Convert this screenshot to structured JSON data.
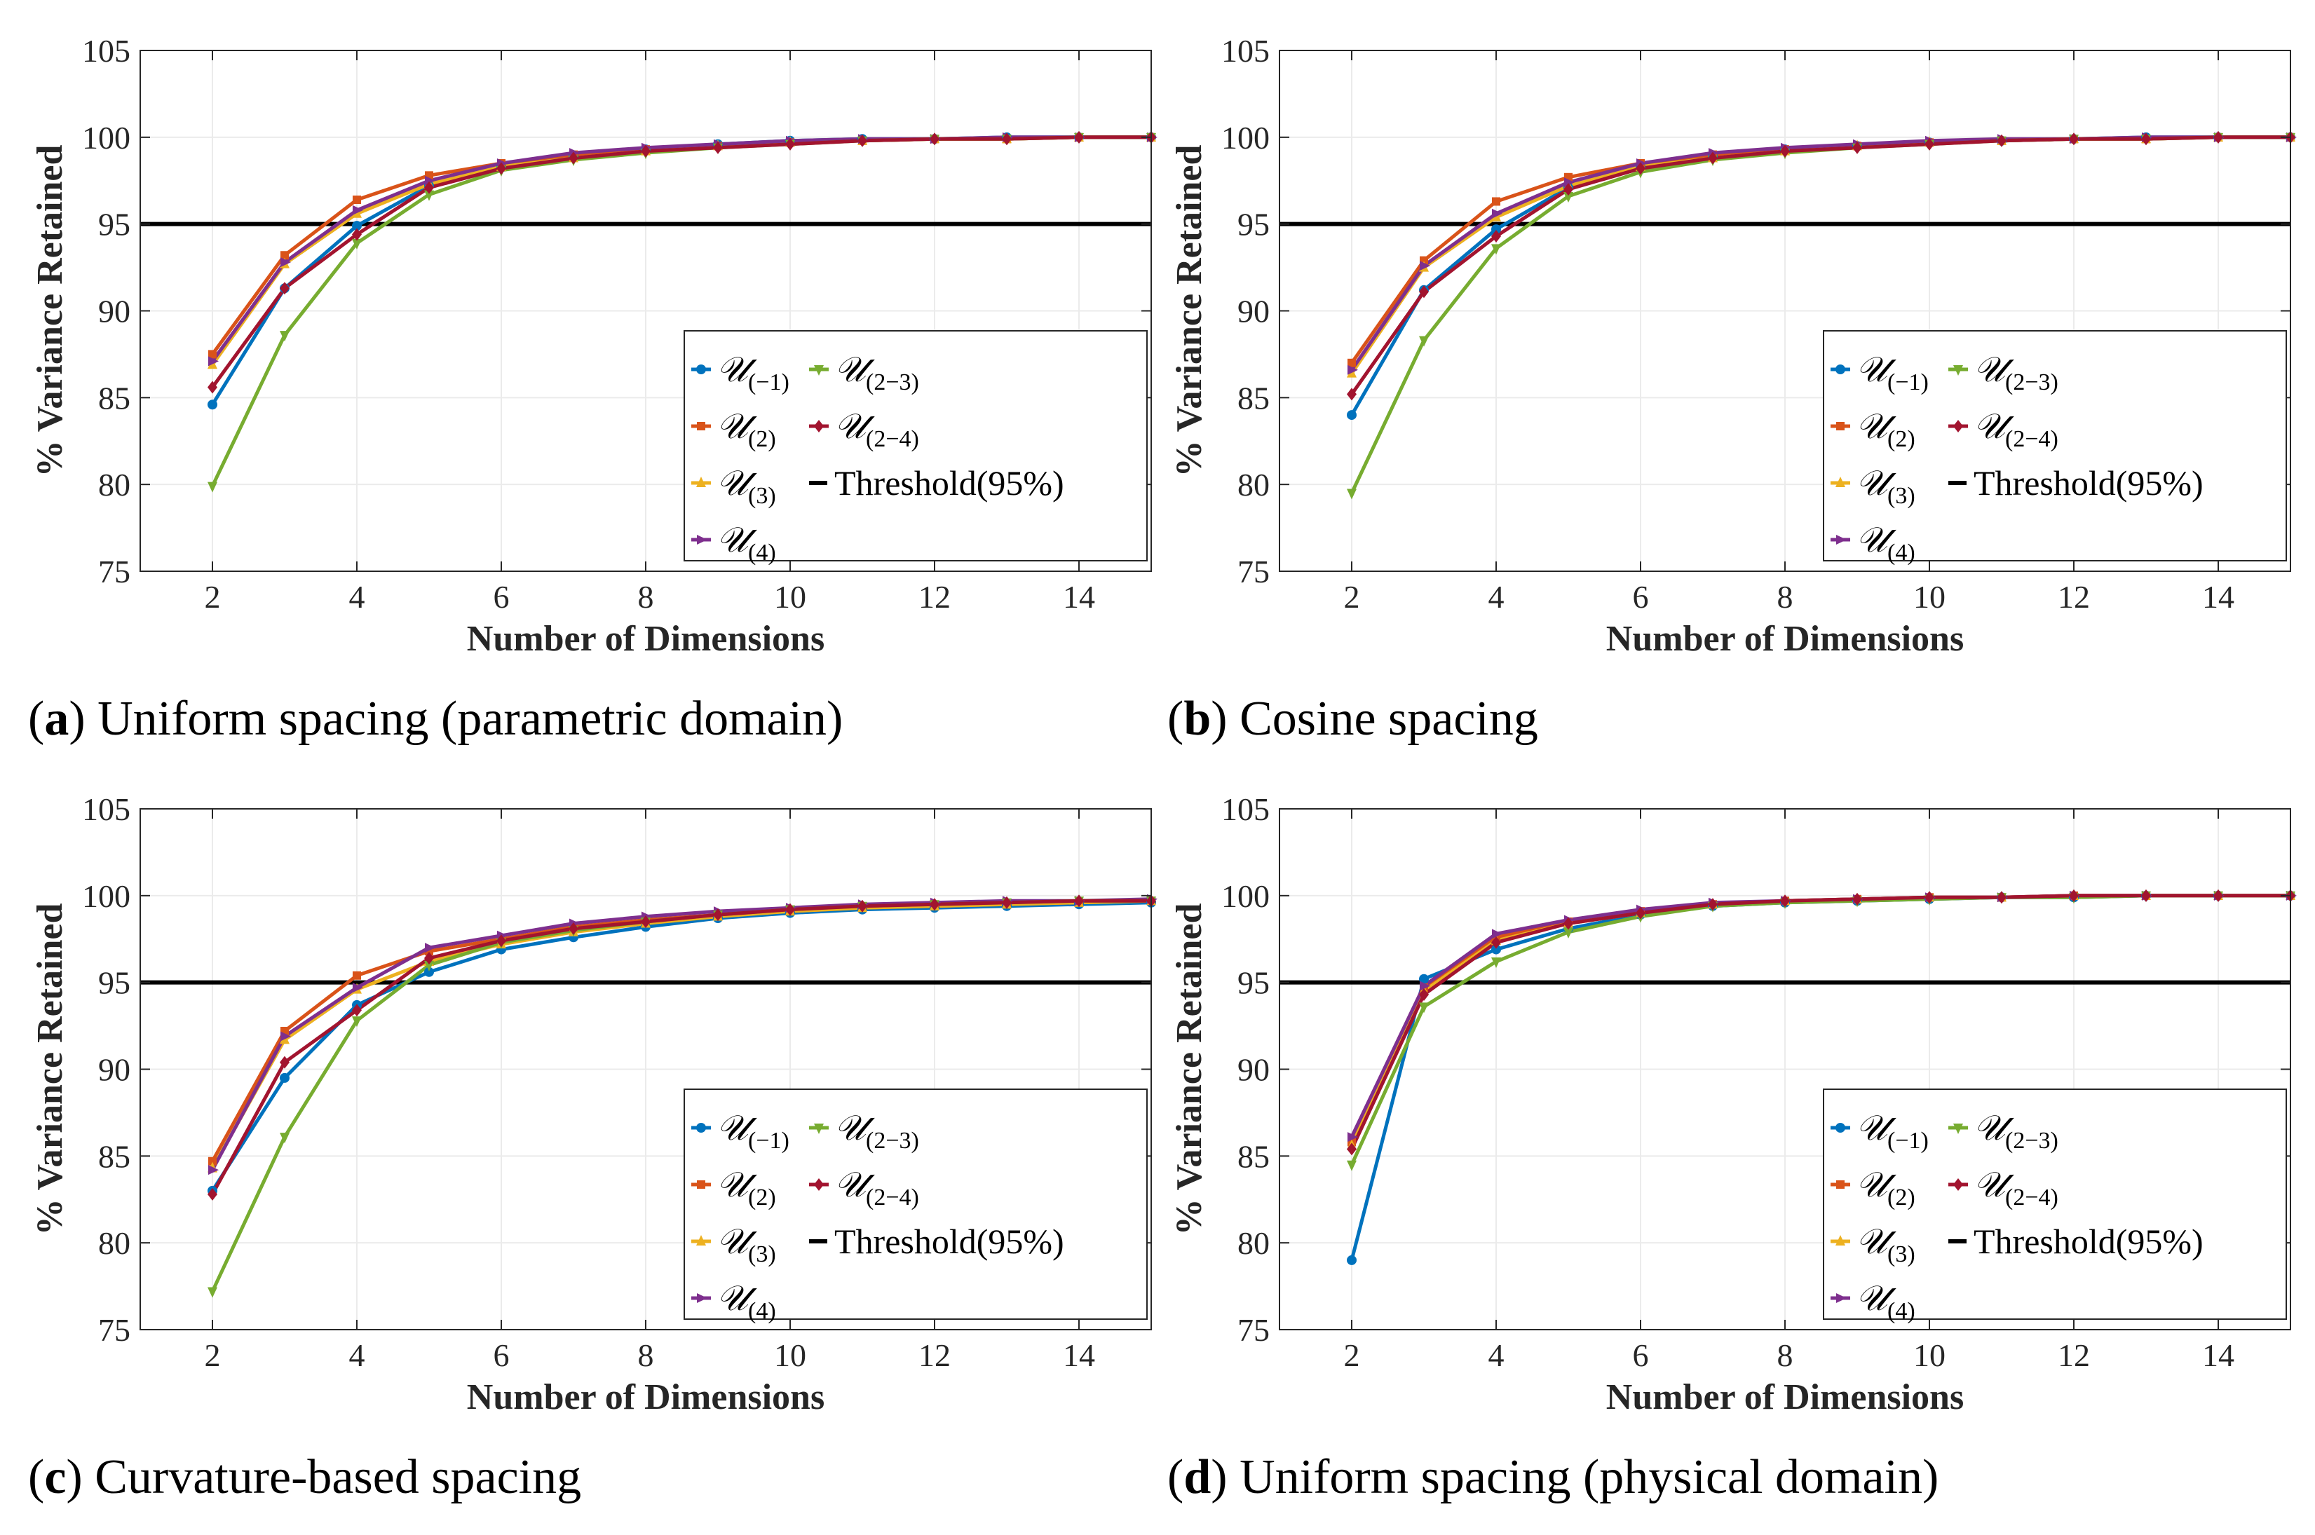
{
  "figure": {
    "panels": [
      {
        "letter": "a",
        "caption": " Uniform spacing (parametric domain)"
      },
      {
        "letter": "b",
        "caption": " Cosine spacing"
      },
      {
        "letter": "c",
        "caption": " Curvature-based spacing"
      },
      {
        "letter": "d",
        "caption": " Uniform spacing (physical domain)"
      }
    ]
  },
  "legend": {
    "entries": [
      {
        "main": "𝒰",
        "sub": "(−1)"
      },
      {
        "main": "𝒰",
        "sub": "(2)"
      },
      {
        "main": "𝒰",
        "sub": "(3)"
      },
      {
        "main": "𝒰",
        "sub": "(4)"
      },
      {
        "main": "𝒰",
        "sub": "(2−3)"
      },
      {
        "main": "𝒰",
        "sub": "(2−4)"
      },
      {
        "main": "Threshold(95%)",
        "sub": ""
      }
    ]
  },
  "colors": {
    "U(-1)": "#0072BD",
    "U(2)": "#D95319",
    "U(3)": "#EDB120",
    "U(4)": "#7E2F8E",
    "U(2-3)": "#77AC30",
    "U(2-4)": "#A2142F",
    "threshold": "#000000",
    "grid": "#ebebeb",
    "axis": "#262626"
  },
  "chart_data": [
    {
      "type": "line",
      "panel": "a",
      "title": "",
      "xlabel": "Number of Dimensions",
      "ylabel": "% Variance Retained",
      "xlim": [
        1,
        15
      ],
      "ylim": [
        75,
        105
      ],
      "xticks": [
        2,
        4,
        6,
        8,
        10,
        12,
        14
      ],
      "yticks": [
        75,
        80,
        85,
        90,
        95,
        100,
        105
      ],
      "threshold": 95,
      "x": [
        2,
        3,
        4,
        5,
        6,
        7,
        8,
        9,
        10,
        11,
        12,
        13,
        14,
        15
      ],
      "series": [
        {
          "name": "U(-1)",
          "values": [
            84.6,
            91.3,
            94.9,
            97.2,
            98.3,
            98.9,
            99.3,
            99.6,
            99.8,
            99.9,
            99.9,
            100.0,
            100.0,
            100.0
          ]
        },
        {
          "name": "U(2)",
          "values": [
            87.5,
            93.2,
            96.4,
            97.8,
            98.5,
            99.0,
            99.3,
            99.5,
            99.7,
            99.8,
            99.9,
            99.9,
            100.0,
            100.0
          ]
        },
        {
          "name": "U(3)",
          "values": [
            86.9,
            92.7,
            95.6,
            97.3,
            98.3,
            98.8,
            99.2,
            99.5,
            99.7,
            99.8,
            99.9,
            99.9,
            100.0,
            100.0
          ]
        },
        {
          "name": "U(4)",
          "values": [
            87.1,
            92.8,
            95.8,
            97.5,
            98.5,
            99.1,
            99.4,
            99.6,
            99.8,
            99.9,
            99.9,
            100.0,
            100.0,
            100.0
          ]
        },
        {
          "name": "U(2-3)",
          "values": [
            79.9,
            88.6,
            93.9,
            96.7,
            98.1,
            98.7,
            99.1,
            99.4,
            99.6,
            99.8,
            99.9,
            99.9,
            100.0,
            100.0
          ]
        },
        {
          "name": "U(2-4)",
          "values": [
            85.6,
            91.3,
            94.4,
            97.1,
            98.2,
            98.8,
            99.2,
            99.4,
            99.6,
            99.8,
            99.9,
            99.9,
            100.0,
            100.0
          ]
        }
      ],
      "legend_position": "lower-right"
    },
    {
      "type": "line",
      "panel": "b",
      "title": "",
      "xlabel": "Number of Dimensions",
      "ylabel": "% Variance Retained",
      "xlim": [
        1,
        15
      ],
      "ylim": [
        75,
        105
      ],
      "xticks": [
        2,
        4,
        6,
        8,
        10,
        12,
        14
      ],
      "yticks": [
        75,
        80,
        85,
        90,
        95,
        100,
        105
      ],
      "threshold": 95,
      "x": [
        2,
        3,
        4,
        5,
        6,
        7,
        8,
        9,
        10,
        11,
        12,
        13,
        14,
        15
      ],
      "series": [
        {
          "name": "U(-1)",
          "values": [
            84.0,
            91.2,
            94.7,
            97.1,
            98.3,
            98.9,
            99.3,
            99.5,
            99.7,
            99.8,
            99.9,
            100.0,
            100.0,
            100.0
          ]
        },
        {
          "name": "U(2)",
          "values": [
            87.0,
            92.9,
            96.3,
            97.7,
            98.5,
            99.0,
            99.3,
            99.5,
            99.7,
            99.8,
            99.9,
            99.9,
            100.0,
            100.0
          ]
        },
        {
          "name": "U(3)",
          "values": [
            86.4,
            92.5,
            95.4,
            97.2,
            98.3,
            98.8,
            99.2,
            99.5,
            99.7,
            99.8,
            99.9,
            99.9,
            100.0,
            100.0
          ]
        },
        {
          "name": "U(4)",
          "values": [
            86.6,
            92.6,
            95.6,
            97.4,
            98.5,
            99.1,
            99.4,
            99.6,
            99.8,
            99.9,
            99.9,
            100.0,
            100.0,
            100.0
          ]
        },
        {
          "name": "U(2-3)",
          "values": [
            79.5,
            88.3,
            93.6,
            96.6,
            98.0,
            98.7,
            99.1,
            99.4,
            99.6,
            99.8,
            99.9,
            99.9,
            100.0,
            100.0
          ]
        },
        {
          "name": "U(2-4)",
          "values": [
            85.2,
            91.1,
            94.3,
            97.0,
            98.2,
            98.8,
            99.2,
            99.4,
            99.6,
            99.8,
            99.9,
            99.9,
            100.0,
            100.0
          ]
        }
      ],
      "legend_position": "lower-right"
    },
    {
      "type": "line",
      "panel": "c",
      "title": "",
      "xlabel": "Number of Dimensions",
      "ylabel": "% Variance Retained",
      "xlim": [
        1,
        15
      ],
      "ylim": [
        75,
        105
      ],
      "xticks": [
        2,
        4,
        6,
        8,
        10,
        12,
        14
      ],
      "yticks": [
        75,
        80,
        85,
        90,
        95,
        100,
        105
      ],
      "threshold": 95,
      "x": [
        2,
        3,
        4,
        5,
        6,
        7,
        8,
        9,
        10,
        11,
        12,
        13,
        14,
        15
      ],
      "series": [
        {
          "name": "U(-1)",
          "values": [
            83.0,
            89.5,
            93.7,
            95.6,
            96.9,
            97.6,
            98.2,
            98.7,
            99.0,
            99.2,
            99.3,
            99.4,
            99.5,
            99.6
          ]
        },
        {
          "name": "U(2)",
          "values": [
            84.7,
            92.2,
            95.4,
            96.8,
            97.5,
            98.2,
            98.6,
            98.9,
            99.1,
            99.3,
            99.4,
            99.5,
            99.6,
            99.7
          ]
        },
        {
          "name": "U(3)",
          "values": [
            84.3,
            91.7,
            94.6,
            96.2,
            97.2,
            97.9,
            98.4,
            98.8,
            99.1,
            99.3,
            99.4,
            99.5,
            99.6,
            99.7
          ]
        },
        {
          "name": "U(4)",
          "values": [
            84.2,
            91.9,
            94.7,
            97.0,
            97.7,
            98.4,
            98.8,
            99.1,
            99.3,
            99.5,
            99.6,
            99.7,
            99.7,
            99.8
          ]
        },
        {
          "name": "U(2-3)",
          "values": [
            77.2,
            86.1,
            92.8,
            96.0,
            97.3,
            98.0,
            98.5,
            98.9,
            99.2,
            99.4,
            99.5,
            99.6,
            99.7,
            99.7
          ]
        },
        {
          "name": "U(2-4)",
          "values": [
            82.8,
            90.4,
            93.4,
            96.4,
            97.4,
            98.1,
            98.5,
            98.9,
            99.2,
            99.4,
            99.5,
            99.6,
            99.7,
            99.7
          ]
        }
      ],
      "legend_position": "lower-right"
    },
    {
      "type": "line",
      "panel": "d",
      "title": "",
      "xlabel": "Number of Dimensions",
      "ylabel": "% Variance Retained",
      "xlim": [
        1,
        15
      ],
      "ylim": [
        75,
        105
      ],
      "xticks": [
        2,
        4,
        6,
        8,
        10,
        12,
        14
      ],
      "yticks": [
        75,
        80,
        85,
        90,
        95,
        100,
        105
      ],
      "threshold": 95,
      "x": [
        2,
        3,
        4,
        5,
        6,
        7,
        8,
        9,
        10,
        11,
        12,
        13,
        14,
        15
      ],
      "series": [
        {
          "name": "U(-1)",
          "values": [
            79.0,
            95.2,
            96.9,
            98.1,
            98.9,
            99.4,
            99.6,
            99.7,
            99.8,
            99.9,
            99.9,
            100.0,
            100.0,
            100.0
          ]
        },
        {
          "name": "U(2)",
          "values": [
            85.8,
            94.7,
            97.6,
            98.5,
            99.1,
            99.5,
            99.7,
            99.8,
            99.9,
            99.9,
            100.0,
            100.0,
            100.0,
            100.0
          ]
        },
        {
          "name": "U(3)",
          "values": [
            85.6,
            94.5,
            97.4,
            98.4,
            99.0,
            99.5,
            99.7,
            99.8,
            99.9,
            99.9,
            100.0,
            100.0,
            100.0,
            100.0
          ]
        },
        {
          "name": "U(4)",
          "values": [
            86.1,
            94.8,
            97.8,
            98.6,
            99.2,
            99.6,
            99.7,
            99.8,
            99.9,
            99.9,
            100.0,
            100.0,
            100.0,
            100.0
          ]
        },
        {
          "name": "U(2-3)",
          "values": [
            84.5,
            93.6,
            96.2,
            97.9,
            98.8,
            99.4,
            99.6,
            99.7,
            99.8,
            99.9,
            99.9,
            100.0,
            100.0,
            100.0
          ]
        },
        {
          "name": "U(2-4)",
          "values": [
            85.4,
            94.3,
            97.3,
            98.4,
            99.0,
            99.5,
            99.7,
            99.8,
            99.9,
            99.9,
            100.0,
            100.0,
            100.0,
            100.0
          ]
        }
      ],
      "legend_position": "lower-right"
    }
  ]
}
